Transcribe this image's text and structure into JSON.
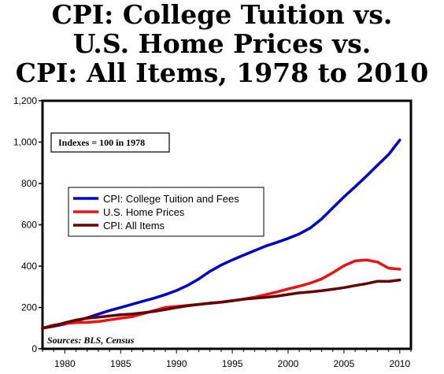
{
  "header": {
    "title_line1": "CPI: College Tuition vs.",
    "title_line2": "U.S. Home Prices vs.",
    "title_line3": "CPI: All Items, 1978 to 2010"
  },
  "chart_data": {
    "type": "line",
    "title": "CPI: College Tuition vs. U.S. Home Prices vs. CPI: All Items, 1978 to 2010",
    "xlabel": "",
    "ylabel": "",
    "xlim": [
      1978,
      2011
    ],
    "ylim": [
      0,
      1200
    ],
    "x_ticks": [
      1980,
      1985,
      1990,
      1995,
      2000,
      2005,
      2010
    ],
    "y_ticks": [
      0,
      200,
      400,
      600,
      800,
      1000,
      1200
    ],
    "y_tick_labels": [
      "0",
      "200",
      "400",
      "600",
      "800",
      "1,000",
      "1,200"
    ],
    "grid": false,
    "legend_position": "middle-left",
    "note": "Indexes = 100 in 1978",
    "source": "Sources: BLS, Census",
    "x": [
      1978,
      1979,
      1980,
      1981,
      1982,
      1983,
      1984,
      1985,
      1986,
      1987,
      1988,
      1989,
      1990,
      1991,
      1992,
      1993,
      1994,
      1995,
      1996,
      1997,
      1998,
      1999,
      2000,
      2001,
      2002,
      2003,
      2004,
      2005,
      2006,
      2007,
      2008,
      2009,
      2010
    ],
    "series": [
      {
        "name": "CPI: College Tuition and Fees",
        "color": "#0000CC",
        "values": [
          100,
          109,
          120,
          134,
          150,
          168,
          185,
          200,
          215,
          230,
          245,
          262,
          282,
          307,
          338,
          375,
          405,
          430,
          453,
          475,
          497,
          515,
          534,
          556,
          585,
          628,
          682,
          735,
          784,
          835,
          888,
          940,
          1010
        ]
      },
      {
        "name": "U.S. Home Prices",
        "color": "#EE1111",
        "values": [
          100,
          115,
          122,
          127,
          128,
          132,
          140,
          148,
          155,
          170,
          185,
          200,
          205,
          210,
          215,
          220,
          225,
          232,
          240,
          250,
          262,
          275,
          290,
          303,
          318,
          338,
          368,
          402,
          425,
          430,
          420,
          390,
          385
        ]
      },
      {
        "name": "CPI: All Items",
        "color": "#660000",
        "values": [
          100,
          111,
          126,
          139,
          148,
          153,
          159,
          165,
          168,
          174,
          181,
          190,
          200,
          208,
          215,
          221,
          226,
          233,
          240,
          245,
          249,
          255,
          263,
          271,
          275,
          281,
          288,
          296,
          306,
          315,
          327,
          326,
          333
        ]
      }
    ]
  }
}
